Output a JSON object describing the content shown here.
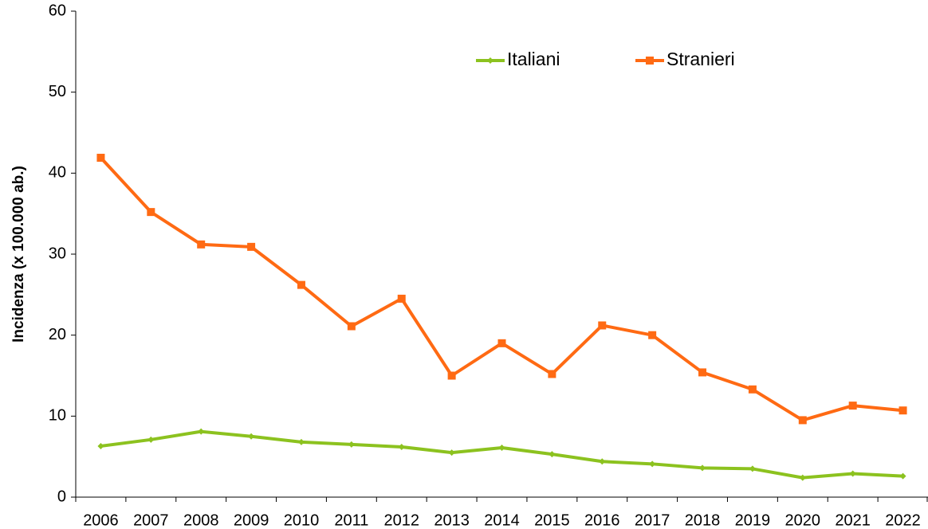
{
  "chart_data": {
    "type": "line",
    "y_label": "Incidenza (x 100.000 ab.)",
    "categories": [
      "2006",
      "2007",
      "2008",
      "2009",
      "2010",
      "2011",
      "2012",
      "2013",
      "2014",
      "2015",
      "2016",
      "2017",
      "2018",
      "2019",
      "2020",
      "2021",
      "2022"
    ],
    "series": [
      {
        "name": "Italiani",
        "color": "#8cc21f",
        "marker": "diamond",
        "values": [
          6.3,
          7.1,
          8.1,
          7.5,
          6.8,
          6.5,
          6.2,
          5.5,
          6.1,
          5.3,
          4.4,
          4.1,
          3.6,
          3.5,
          2.4,
          2.9,
          2.6
        ]
      },
      {
        "name": "Stranieri",
        "color": "#ff6a13",
        "marker": "square",
        "values": [
          41.9,
          35.2,
          31.2,
          30.9,
          26.2,
          21.1,
          24.5,
          15.0,
          19.0,
          15.2,
          21.2,
          20.0,
          15.4,
          13.3,
          9.5,
          11.3,
          10.7
        ]
      }
    ],
    "ylim": [
      0,
      60
    ],
    "yticks": [
      0,
      10,
      20,
      30,
      40,
      50,
      60
    ],
    "grid": false,
    "legend": "top"
  }
}
